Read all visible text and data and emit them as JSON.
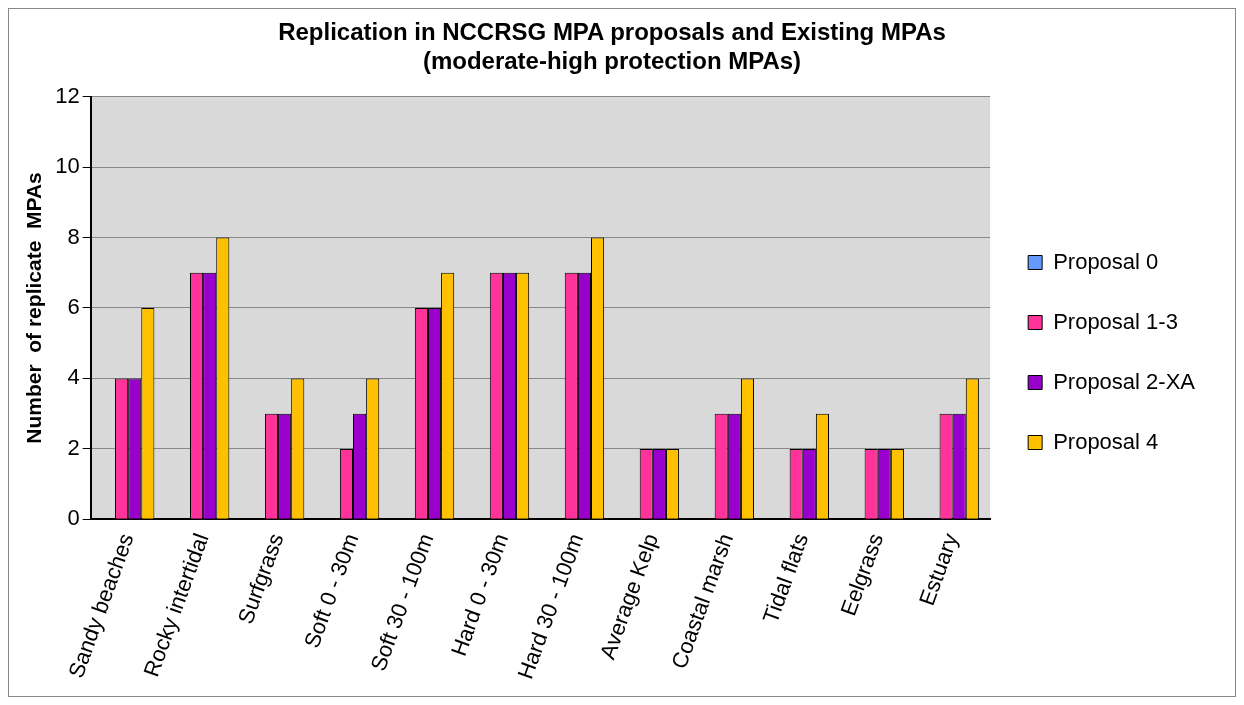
{
  "chart_data": {
    "type": "bar",
    "title": [
      "Replication in NCCRSG MPA proposals and Existing MPAs",
      "(moderate-high protection MPAs)"
    ],
    "ylabel": "Number  of replicate  MPAs",
    "categories": [
      "Sandy beaches",
      "Rocky intertidal",
      "Surfgrass",
      "Soft 0 - 30m",
      "Soft 30 - 100m",
      "Hard 0 - 30m",
      "Hard 30 - 100m",
      "Average Kelp",
      "Coastal marsh",
      "Tidal flats",
      "Eelgrass",
      "Estuary"
    ],
    "series": [
      {
        "name": "Proposal 0",
        "color": "#6699ff",
        "values": [
          0,
          0,
          0,
          0,
          0,
          0,
          0,
          0,
          0,
          0,
          0,
          0
        ]
      },
      {
        "name": "Proposal 1-3",
        "color": "#ff3399",
        "values": [
          4,
          7,
          3,
          2,
          6,
          7,
          7,
          2,
          3,
          2,
          2,
          3
        ]
      },
      {
        "name": "Proposal 2-XA",
        "color": "#9900cc",
        "values": [
          4,
          7,
          3,
          3,
          6,
          7,
          7,
          2,
          3,
          2,
          2,
          3
        ]
      },
      {
        "name": "Proposal 4",
        "color": "#ffc000",
        "values": [
          6,
          8,
          4,
          4,
          7,
          7,
          8,
          2,
          4,
          3,
          2,
          4
        ]
      }
    ],
    "ylim": [
      0,
      12
    ],
    "yticks": [
      0,
      2,
      4,
      6,
      8,
      10,
      12
    ],
    "grid": "y",
    "legend": "right"
  }
}
